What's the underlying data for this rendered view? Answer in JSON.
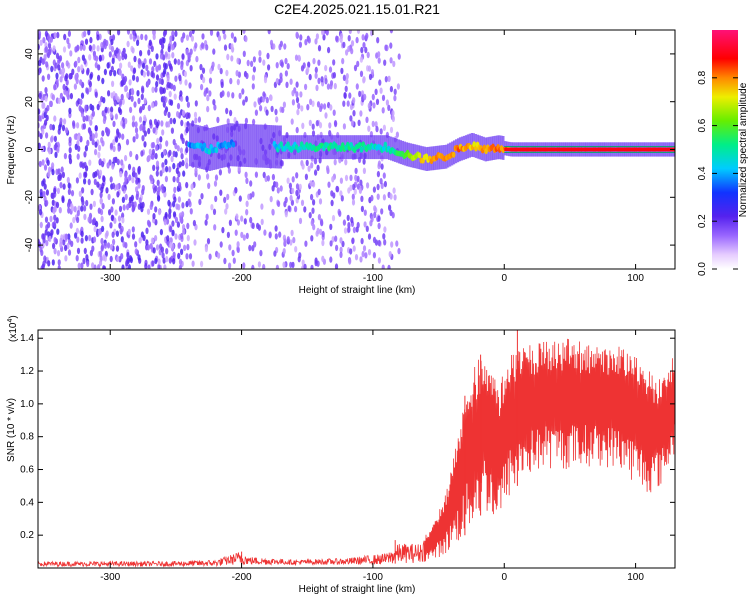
{
  "figure_title": "C2E4.2025.021.15.01.R21",
  "colors": {
    "snr_line": "#ee3333",
    "axes": "#000000",
    "background": "#ffffff"
  },
  "chart_data": [
    {
      "type": "heatmap",
      "name": "spectrogram",
      "xlabel": "Height of straight line (km)",
      "ylabel": "Frequency (Hz)",
      "xlim": [
        -355,
        130
      ],
      "ylim": [
        -50,
        50
      ],
      "x_ticks": [
        -300,
        -200,
        -100,
        0,
        100
      ],
      "x_tick_labels": [
        "-300",
        "-200",
        "-100",
        "0",
        "100"
      ],
      "y_ticks": [
        -40,
        -20,
        0,
        20,
        40
      ],
      "y_tick_labels": [
        "-40",
        "-20",
        "0",
        "20",
        "40"
      ],
      "colorbar": {
        "label": "Normalized spectral amplitude",
        "range": [
          0,
          1
        ],
        "ticks": [
          0.0,
          0.2,
          0.4,
          0.6,
          0.8
        ],
        "tick_labels": [
          "0.0",
          "0.2",
          "0.4",
          "0.6",
          "0.8"
        ],
        "colormap": "rainbow (white-violet-blue-cyan-green-yellow-red-magenta)"
      },
      "ridge": {
        "description": "dominant frequency trace versus height",
        "x": [
          -240,
          -225,
          -210,
          -170,
          -140,
          -110,
          -90,
          -75,
          -60,
          -45,
          -35,
          -25,
          -15,
          -5,
          5,
          20,
          50,
          80,
          110,
          130
        ],
        "freq": [
          2,
          0,
          2,
          1,
          1,
          1,
          1,
          -2,
          -4,
          -3,
          0,
          2,
          0,
          1,
          0,
          0,
          0,
          0,
          0,
          0
        ],
        "amplitude": [
          0.35,
          0.45,
          0.35,
          0.45,
          0.5,
          0.5,
          0.45,
          0.6,
          0.75,
          0.8,
          0.8,
          0.75,
          0.8,
          0.8,
          0.85,
          0.9,
          0.92,
          0.92,
          0.92,
          0.9
        ]
      },
      "noise_extent_km": [
        -355,
        -80
      ]
    },
    {
      "type": "line",
      "name": "snr",
      "xlabel": "Height of straight line (km)",
      "ylabel": "SNR (10 * v/v)",
      "y_multiplier_label": "(x10",
      "y_multiplier_exponent": "4",
      "y_multiplier_close": ")",
      "xlim": [
        -355,
        130
      ],
      "ylim": [
        0,
        1.45
      ],
      "x_ticks": [
        -300,
        -200,
        -100,
        0,
        100
      ],
      "x_tick_labels": [
        "-300",
        "-200",
        "-100",
        "0",
        "100"
      ],
      "y_ticks": [
        0.2,
        0.4,
        0.6,
        0.8,
        1.0,
        1.2,
        1.4
      ],
      "y_tick_labels": [
        "0.2",
        "0.4",
        "0.6",
        "0.8",
        "1.0",
        "1.2",
        "1.4"
      ],
      "series": [
        {
          "name": "SNR",
          "envelope_x": [
            -355,
            -260,
            -220,
            -205,
            -200,
            -195,
            -160,
            -120,
            -90,
            -80,
            -65,
            -55,
            -45,
            -35,
            -25,
            -15,
            -5,
            5,
            15,
            30,
            50,
            70,
            90,
            100,
            110,
            120,
            130
          ],
          "envelope_upper": [
            0.04,
            0.04,
            0.05,
            0.09,
            0.11,
            0.07,
            0.05,
            0.06,
            0.09,
            0.15,
            0.15,
            0.25,
            0.45,
            0.85,
            1.2,
            1.35,
            1.1,
            1.3,
            1.35,
            1.38,
            1.4,
            1.35,
            1.35,
            1.32,
            1.2,
            1.15,
            1.32
          ],
          "envelope_lower": [
            0.01,
            0.01,
            0.01,
            0.02,
            0.02,
            0.02,
            0.02,
            0.02,
            0.02,
            0.03,
            0.03,
            0.05,
            0.08,
            0.15,
            0.25,
            0.35,
            0.25,
            0.45,
            0.55,
            0.6,
            0.6,
            0.62,
            0.6,
            0.5,
            0.45,
            0.5,
            0.7
          ],
          "spikes": [
            {
              "x": 10,
              "y": 1.45
            },
            {
              "x": -30,
              "y": 1.05
            },
            {
              "x": -18,
              "y": 1.3
            },
            {
              "x": -83,
              "y": 0.17
            },
            {
              "x": -200,
              "y": 0.1
            }
          ]
        }
      ]
    }
  ]
}
